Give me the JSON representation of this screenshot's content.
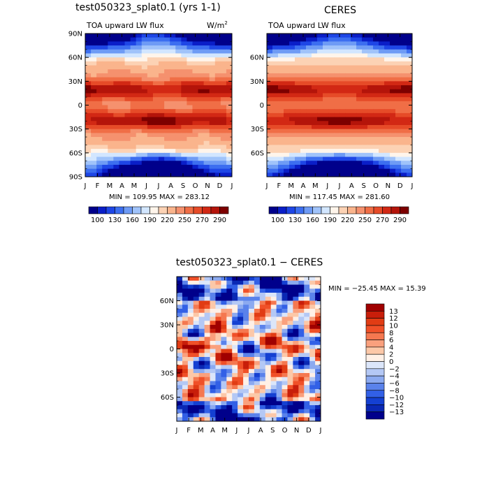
{
  "chart_data": [
    {
      "type": "heatmap",
      "id": "model",
      "title": "test050323_splat0.1 (yrs 1-1)",
      "title_left": "TOA upward LW flux",
      "title_right_base": "W/m",
      "title_right_sup": "2",
      "x_ticks": [
        "J",
        "F",
        "M",
        "A",
        "M",
        "J",
        "J",
        "A",
        "S",
        "O",
        "N",
        "D",
        "J"
      ],
      "y_ticks": [
        "90N",
        "60N",
        "30N",
        "0",
        "30S",
        "60S",
        "90S"
      ],
      "y_ticks_values": [
        90,
        60,
        30,
        0,
        -30,
        -60,
        -90
      ],
      "ylim": [
        -90,
        90
      ],
      "stats": "MIN = 109.95  MAX = 283.12",
      "min": 109.95,
      "max": 283.12,
      "colorbar_labels": [
        "100",
        "130",
        "160",
        "190",
        "220",
        "250",
        "270",
        "290"
      ]
    },
    {
      "type": "heatmap",
      "id": "obs",
      "title": "CERES",
      "title_left": "TOA upward LW flux",
      "x_ticks": [
        "J",
        "F",
        "M",
        "A",
        "M",
        "J",
        "J",
        "A",
        "S",
        "O",
        "N",
        "D",
        "J"
      ],
      "y_ticks": [
        "60N",
        "30N",
        "0",
        "30S",
        "60S"
      ],
      "y_ticks_values": [
        60,
        30,
        0,
        -30,
        -60
      ],
      "ylim": [
        -90,
        90
      ],
      "stats": "MIN = 117.45  MAX = 281.60",
      "min": 117.45,
      "max": 281.6,
      "colorbar_labels": [
        "100",
        "130",
        "160",
        "190",
        "220",
        "250",
        "270",
        "290"
      ]
    },
    {
      "type": "heatmap",
      "id": "diff",
      "title": "test050323_splat0.1 − CERES",
      "x_ticks": [
        "J",
        "F",
        "M",
        "A",
        "M",
        "J",
        "J",
        "A",
        "S",
        "O",
        "N",
        "D",
        "J"
      ],
      "y_ticks": [
        "60N",
        "30N",
        "0",
        "30S",
        "60S"
      ],
      "y_ticks_values": [
        60,
        30,
        0,
        -30,
        -60
      ],
      "ylim": [
        -90,
        90
      ],
      "stats": "MIN = −25.45  MAX =  15.39",
      "min": -25.45,
      "max": 15.39,
      "colorbar_labels": [
        "13",
        "12",
        "10",
        "8",
        "6",
        "4",
        "2",
        "0",
        "−2",
        "−4",
        "−6",
        "−8",
        "−10",
        "−12",
        "−13"
      ]
    }
  ],
  "colors": {
    "abs_scale": [
      "#00008b",
      "#0a1ec8",
      "#1e46e6",
      "#3c6ef0",
      "#6e9bf5",
      "#a0c3fa",
      "#d2e6ff",
      "#fff5eb",
      "#fcd2b4",
      "#fab48c",
      "#f5916e",
      "#f06e46",
      "#e64b28",
      "#d22814",
      "#b4140a",
      "#7d0000"
    ],
    "diff_scale": [
      "#a00000",
      "#c81e0a",
      "#e13c14",
      "#f05028",
      "#f57850",
      "#faa07d",
      "#fcc8a8",
      "#fff0e6",
      "#dce6fa",
      "#b4c8f5",
      "#8cAaf0",
      "#5a82eb",
      "#3260e6",
      "#1440d2",
      "#0a28b4",
      "#00008b"
    ]
  }
}
